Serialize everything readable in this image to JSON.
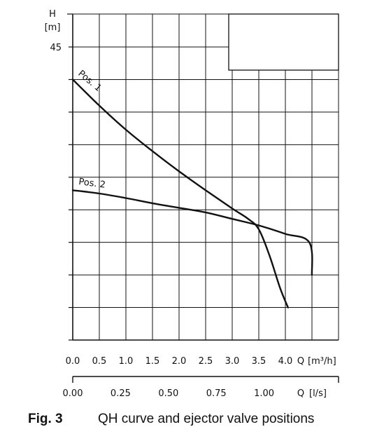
{
  "chart_data": {
    "type": "line",
    "y_axis": {
      "label_top": "H",
      "label_unit": "[m]",
      "tick_label": "45",
      "tick_value": 45,
      "ylim": [
        0,
        45
      ],
      "grid_step": 5
    },
    "x_axis_m3h": {
      "ticks": [
        "0.0",
        "0.5",
        "1.0",
        "1.5",
        "2.0",
        "2.5",
        "3.0",
        "3.5",
        "4.0"
      ],
      "label_q": "Q",
      "label_unit": "[m³/h]",
      "xlim": [
        0,
        5
      ]
    },
    "x_axis_ls": {
      "ticks": [
        "0.00",
        "0.25",
        "0.50",
        "0.75",
        "1.00"
      ],
      "tick_values": [
        0,
        0.25,
        0.5,
        0.75,
        1.0
      ],
      "label_q": "Q",
      "label_unit": "[l/s]"
    },
    "series": [
      {
        "name": "Pos. 1",
        "x": [
          0,
          0.5,
          1.0,
          1.5,
          2.0,
          2.5,
          3.0,
          3.3,
          3.5,
          3.7,
          3.9,
          4.05
        ],
        "y": [
          40.0,
          36.0,
          32.3,
          29.0,
          25.9,
          23.0,
          20.2,
          18.6,
          17.0,
          13.0,
          8.0,
          5.0
        ]
      },
      {
        "name": "Pos. 2",
        "x": [
          0,
          0.5,
          1.0,
          1.5,
          2.0,
          2.5,
          3.0,
          3.5,
          4.0,
          4.45,
          4.5
        ],
        "y": [
          23.0,
          22.5,
          21.8,
          21.0,
          20.3,
          19.6,
          18.6,
          17.6,
          16.3,
          15.0,
          10.0
        ]
      }
    ],
    "grid": true
  },
  "caption": {
    "figure": "Fig. 3",
    "text": "QH curve and ejector valve positions"
  }
}
